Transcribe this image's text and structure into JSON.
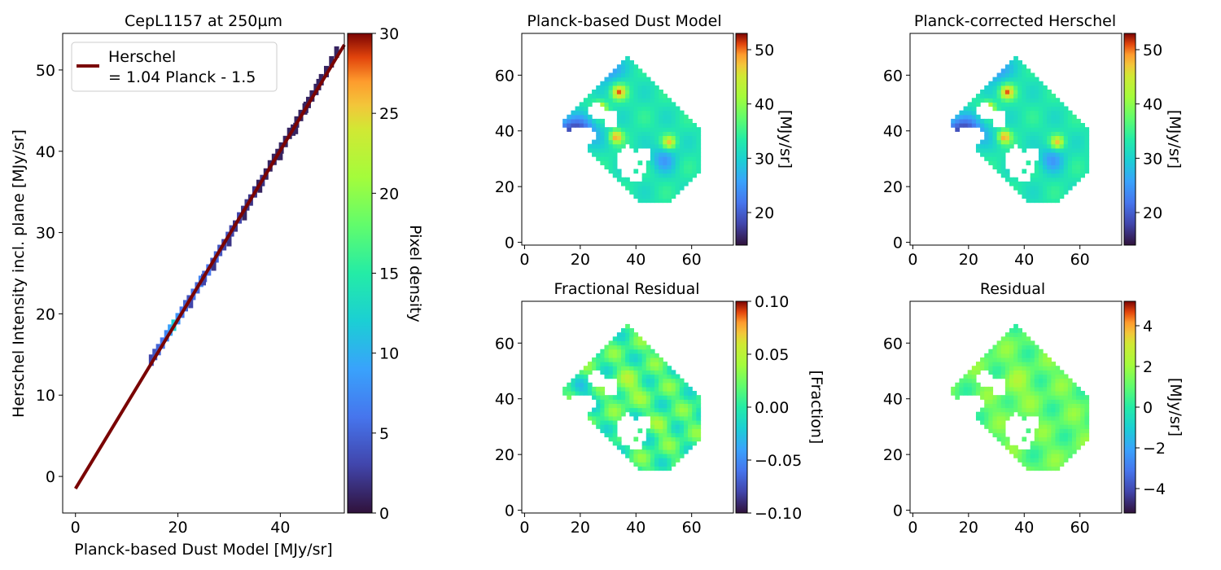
{
  "chart_data": [
    {
      "type": "heatmap",
      "title": "CepL1157 at 250µm",
      "xlabel": "Planck-based Dust Model [MJy/sr]",
      "ylabel": "Herschel Intensity incl. plane [MJy/sr]",
      "xlim": [
        -2.5,
        52.5
      ],
      "ylim": [
        -4.5,
        54.5
      ],
      "xticks": [
        "0",
        "20",
        "40"
      ],
      "xtick_values": [
        0,
        20,
        40
      ],
      "yticks": [
        "0",
        "10",
        "20",
        "30",
        "40",
        "50"
      ],
      "ytick_values": [
        0,
        10,
        20,
        30,
        40,
        50
      ],
      "grid": false,
      "legend_position": "top-left",
      "colorbar": {
        "label": "Pixel density",
        "range": [
          0,
          30
        ],
        "ticks": [
          "0",
          "5",
          "10",
          "15",
          "20",
          "25",
          "30"
        ],
        "tick_values": [
          0,
          5,
          10,
          15,
          20,
          25,
          30
        ],
        "colormap": "turbo"
      },
      "fit_line": {
        "legend_line1": "Herschel",
        "legend_line2": "= 1.04 Planck - 1.5",
        "slope": 1.04,
        "intercept": -1.5,
        "x_range": [
          0,
          52.5
        ],
        "color": "#7a0403"
      },
      "density_points": [
        [
          14.8,
          14.3,
          3
        ],
        [
          15.5,
          15.0,
          4
        ],
        [
          16.2,
          15.6,
          5
        ],
        [
          17.0,
          16.4,
          6
        ],
        [
          17.8,
          17.3,
          7
        ],
        [
          18.5,
          18.0,
          9
        ],
        [
          19.2,
          18.6,
          12
        ],
        [
          20.0,
          19.4,
          8
        ],
        [
          20.8,
          20.2,
          6
        ],
        [
          21.5,
          21.0,
          5
        ],
        [
          22.2,
          21.6,
          4
        ],
        [
          23.0,
          22.4,
          6
        ],
        [
          23.8,
          23.2,
          5
        ],
        [
          24.5,
          24.0,
          7
        ],
        [
          25.2,
          24.6,
          5
        ],
        [
          26.0,
          25.4,
          6
        ],
        [
          26.8,
          26.2,
          4
        ],
        [
          27.5,
          27.0,
          5
        ],
        [
          28.2,
          27.8,
          4
        ],
        [
          29.0,
          28.5,
          3
        ],
        [
          29.8,
          29.4,
          4
        ],
        [
          30.5,
          30.2,
          3
        ],
        [
          31.2,
          30.8,
          2
        ],
        [
          32.0,
          31.8,
          3
        ],
        [
          32.8,
          32.6,
          2
        ],
        [
          33.5,
          33.4,
          2
        ],
        [
          34.2,
          34.0,
          2
        ],
        [
          35.0,
          35.0,
          2
        ],
        [
          35.8,
          35.8,
          1
        ],
        [
          36.5,
          36.4,
          2
        ],
        [
          37.2,
          37.2,
          1
        ],
        [
          38.0,
          38.2,
          1
        ],
        [
          38.8,
          39.0,
          1
        ],
        [
          39.5,
          39.6,
          1
        ],
        [
          40.2,
          40.4,
          1
        ],
        [
          41.0,
          41.2,
          1
        ],
        [
          41.8,
          42.2,
          1
        ],
        [
          42.5,
          42.6,
          1
        ],
        [
          43.2,
          43.6,
          1
        ],
        [
          44.0,
          44.4,
          1
        ],
        [
          44.8,
          45.2,
          1
        ],
        [
          45.5,
          46.0,
          1
        ],
        [
          46.2,
          46.8,
          1
        ],
        [
          47.0,
          47.6,
          1
        ],
        [
          48.0,
          48.8,
          1
        ],
        [
          49.0,
          49.8,
          1
        ],
        [
          50.0,
          51.0,
          1
        ],
        [
          51.0,
          52.2,
          1
        ],
        [
          22.5,
          21.4,
          3
        ],
        [
          25.0,
          24.2,
          3
        ],
        [
          27.0,
          26.0,
          2
        ],
        [
          30.0,
          29.0,
          2
        ],
        [
          33.0,
          32.2,
          1
        ],
        [
          36.0,
          35.6,
          1
        ],
        [
          40.0,
          39.6,
          1
        ],
        [
          43.0,
          42.8,
          1
        ],
        [
          45.0,
          45.4,
          1
        ],
        [
          47.5,
          48.2,
          1
        ]
      ]
    },
    {
      "type": "heatmap",
      "title": "Planck-based Dust Model",
      "xlim": [
        -1,
        75
      ],
      "ylim": [
        -1,
        75
      ],
      "xticks": [
        "0",
        "20",
        "40",
        "60"
      ],
      "xtick_values": [
        0,
        20,
        40,
        60
      ],
      "yticks": [
        "0",
        "20",
        "40",
        "60"
      ],
      "ytick_values": [
        0,
        20,
        40,
        60
      ],
      "colorbar": {
        "label": "[MJy/sr]",
        "range": [
          14,
          53
        ],
        "ticks": [
          "20",
          "30",
          "40",
          "50"
        ],
        "tick_values": [
          20,
          30,
          40,
          50
        ],
        "colormap": "turbo"
      }
    },
    {
      "type": "heatmap",
      "title": "Planck-corrected Herschel",
      "xlim": [
        -1,
        75
      ],
      "ylim": [
        -1,
        75
      ],
      "xticks": [
        "0",
        "20",
        "40",
        "60"
      ],
      "xtick_values": [
        0,
        20,
        40,
        60
      ],
      "yticks": [
        "0",
        "20",
        "40",
        "60"
      ],
      "ytick_values": [
        0,
        20,
        40,
        60
      ],
      "colorbar": {
        "label": "[MJy/sr]",
        "range": [
          14,
          53
        ],
        "ticks": [
          "20",
          "30",
          "40",
          "50"
        ],
        "tick_values": [
          20,
          30,
          40,
          50
        ],
        "colormap": "turbo"
      }
    },
    {
      "type": "heatmap",
      "title": "Fractional Residual",
      "xlim": [
        -1,
        75
      ],
      "ylim": [
        -1,
        75
      ],
      "xticks": [
        "0",
        "20",
        "40",
        "60"
      ],
      "xtick_values": [
        0,
        20,
        40,
        60
      ],
      "yticks": [
        "0",
        "20",
        "40",
        "60"
      ],
      "ytick_values": [
        0,
        20,
        40,
        60
      ],
      "colorbar": {
        "label": "[Fraction]",
        "range": [
          -0.1,
          0.1
        ],
        "ticks": [
          "0.10",
          "0.05",
          "0.00",
          "−0.05",
          "−0.10"
        ],
        "tick_values": [
          0.1,
          0.05,
          0.0,
          -0.05,
          -0.1
        ],
        "colormap": "turbo"
      }
    },
    {
      "type": "heatmap",
      "title": "Residual",
      "xlim": [
        -1,
        75
      ],
      "ylim": [
        -1,
        75
      ],
      "xticks": [
        "0",
        "20",
        "40",
        "60"
      ],
      "xtick_values": [
        0,
        20,
        40,
        60
      ],
      "yticks": [
        "0",
        "20",
        "40",
        "60"
      ],
      "ytick_values": [
        0,
        20,
        40,
        60
      ],
      "colorbar": {
        "label": "[MJy/sr]",
        "range": [
          -5.2,
          5.2
        ],
        "ticks": [
          "4",
          "2",
          "0",
          "−2",
          "−4"
        ],
        "tick_values": [
          4,
          2,
          0,
          -2,
          -4
        ],
        "colormap": "turbo"
      }
    }
  ]
}
